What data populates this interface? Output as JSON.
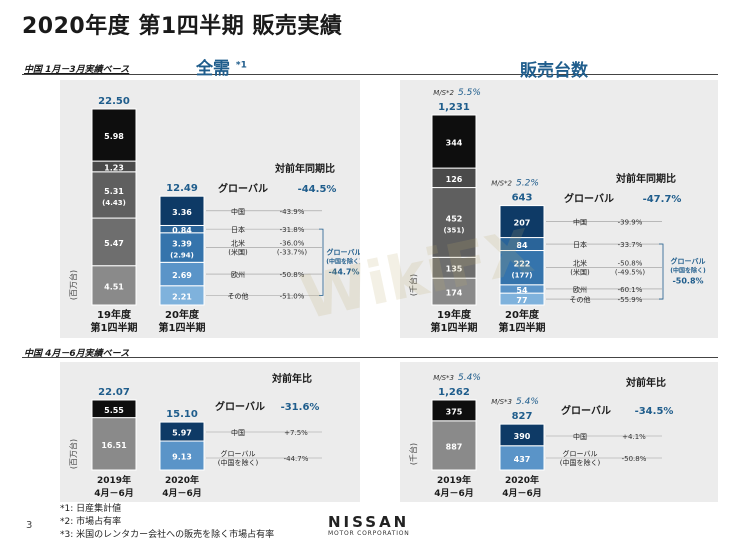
{
  "title": "2020年度 第1四半期 販売実績",
  "top": {
    "base_label": "中国 1月－3月実績ベース",
    "left_heading": "全需",
    "left_heading_sup": "*1",
    "right_heading": "販売台数"
  },
  "bottom": {
    "base_label": "中国 4月－6月実績ベース"
  },
  "chart_data": [
    {
      "type": "bar",
      "panel": "全需 1-3月",
      "unit": "(百万台)",
      "categories": [
        "19年度\n第1四半期",
        "20年度\n第1四半期"
      ],
      "totals": [
        "22.50",
        "12.49"
      ],
      "stacks": [
        [
          {
            "value": 4.51,
            "label": "4.51",
            "color": "#8a8a8a"
          },
          {
            "value": 5.47,
            "label": "5.47",
            "color": "#6e6e6e"
          },
          {
            "value": 5.31,
            "label": "5.31",
            "sub": "(4.43)",
            "color": "#5f5f5f"
          },
          {
            "value": 1.23,
            "label": "1.23",
            "color": "#4a4a4a"
          },
          {
            "value": 5.98,
            "label": "5.98",
            "color": "#0e0e0e"
          }
        ],
        [
          {
            "value": 2.21,
            "label": "2.21",
            "color": "#7fb2dc"
          },
          {
            "value": 2.69,
            "label": "2.69",
            "color": "#5a94c8"
          },
          {
            "value": 3.39,
            "label": "3.39",
            "sub": "(2.94)",
            "color": "#3574ac"
          },
          {
            "value": 0.84,
            "label": "0.84",
            "color": "#2a6499"
          },
          {
            "value": 3.36,
            "label": "3.36",
            "color": "#0e3a66"
          }
        ]
      ],
      "yoy_header": "対前年同期比",
      "global_label": "グローバル",
      "global_value": "-44.5%",
      "regions": [
        {
          "name": "その他",
          "value": "-51.0%"
        },
        {
          "name": "欧州",
          "value": "-50.8%"
        },
        {
          "name": "北米",
          "name2": "(米国)",
          "value": "-36.0%",
          "value2": "(-33.7%)"
        },
        {
          "name": "日本",
          "value": "-31.8%"
        },
        {
          "name": "中国",
          "value": "-43.9%"
        }
      ],
      "excl_label": "グローバル",
      "excl_label2": "(中国を除く)",
      "excl_value": "-44.7%"
    },
    {
      "type": "bar",
      "panel": "販売台数 1-3月",
      "unit": "(千台)",
      "categories": [
        "19年度\n第1四半期",
        "20年度\n第1四半期"
      ],
      "totals": [
        "1,231",
        "643"
      ],
      "ms": [
        {
          "label": "M/S*2",
          "value": "5.5%"
        },
        {
          "label": "M/S*2",
          "value": "5.2%"
        }
      ],
      "stacks": [
        [
          {
            "value": 174,
            "label": "174",
            "color": "#8a8a8a"
          },
          {
            "value": 135,
            "label": "135",
            "color": "#6e6e6e"
          },
          {
            "value": 452,
            "label": "452",
            "sub": "(351)",
            "color": "#5f5f5f"
          },
          {
            "value": 126,
            "label": "126",
            "color": "#4a4a4a"
          },
          {
            "value": 344,
            "label": "344",
            "color": "#0e0e0e"
          }
        ],
        [
          {
            "value": 77,
            "label": "77",
            "color": "#7fb2dc"
          },
          {
            "value": 54,
            "label": "54",
            "color": "#5a94c8"
          },
          {
            "value": 222,
            "label": "222",
            "sub": "(177)",
            "color": "#3574ac"
          },
          {
            "value": 84,
            "label": "84",
            "color": "#2a6499"
          },
          {
            "value": 207,
            "label": "207",
            "color": "#0e3a66"
          }
        ]
      ],
      "yoy_header": "対前年同期比",
      "global_label": "グローバル",
      "global_value": "-47.7%",
      "regions": [
        {
          "name": "その他",
          "value": "-55.9%"
        },
        {
          "name": "欧州",
          "value": "-60.1%"
        },
        {
          "name": "北米",
          "name2": "(米国)",
          "value": "-50.8%",
          "value2": "(-49.5%)"
        },
        {
          "name": "日本",
          "value": "-33.7%"
        },
        {
          "name": "中国",
          "value": "-39.9%"
        }
      ],
      "excl_label": "グローバル",
      "excl_label2": "(中国を除く)",
      "excl_value": "-50.8%"
    },
    {
      "type": "bar",
      "panel": "全需 4-6月",
      "unit": "(百万台)",
      "categories": [
        "2019年\n4月－6月",
        "2020年\n4月－6月"
      ],
      "totals": [
        "22.07",
        "15.10"
      ],
      "stacks": [
        [
          {
            "value": 16.51,
            "label": "16.51",
            "color": "#8a8a8a"
          },
          {
            "value": 5.55,
            "label": "5.55",
            "color": "#0e0e0e"
          }
        ],
        [
          {
            "value": 9.13,
            "label": "9.13",
            "color": "#5a94c8"
          },
          {
            "value": 5.97,
            "label": "5.97",
            "color": "#0e3a66"
          }
        ]
      ],
      "yoy_header": "対前年比",
      "global_label": "グローバル",
      "global_value": "-31.6%",
      "regions": [
        {
          "name": "グローバル",
          "name2": "(中国を除く)",
          "value": "-44.7%"
        },
        {
          "name": "中国",
          "value": "+7.5%"
        }
      ]
    },
    {
      "type": "bar",
      "panel": "販売台数 4-6月",
      "unit": "(千台)",
      "categories": [
        "2019年\n4月－6月",
        "2020年\n4月－6月"
      ],
      "totals": [
        "1,262",
        "827"
      ],
      "ms": [
        {
          "label": "M/S*3",
          "value": "5.4%"
        },
        {
          "label": "M/S*3",
          "value": "5.4%"
        }
      ],
      "stacks": [
        [
          {
            "value": 887,
            "label": "887",
            "color": "#8a8a8a"
          },
          {
            "value": 375,
            "label": "375",
            "color": "#0e0e0e"
          }
        ],
        [
          {
            "value": 437,
            "label": "437",
            "color": "#5a94c8"
          },
          {
            "value": 390,
            "label": "390",
            "color": "#0e3a66"
          }
        ]
      ],
      "yoy_header": "対前年比",
      "global_label": "グローバル",
      "global_value": "-34.5%",
      "regions": [
        {
          "name": "グローバル",
          "name2": "(中国を除く)",
          "value": "-50.8%"
        },
        {
          "name": "中国",
          "value": "+4.1%"
        }
      ]
    }
  ],
  "footnotes": [
    "*1: 日産集計値",
    "*2: 市場占有率",
    "*3: 米国のレンタカー会社への販売を除く市場占有率"
  ],
  "page_number": "3",
  "logo": {
    "main": "NISSAN",
    "sub": "MOTOR CORPORATION"
  }
}
